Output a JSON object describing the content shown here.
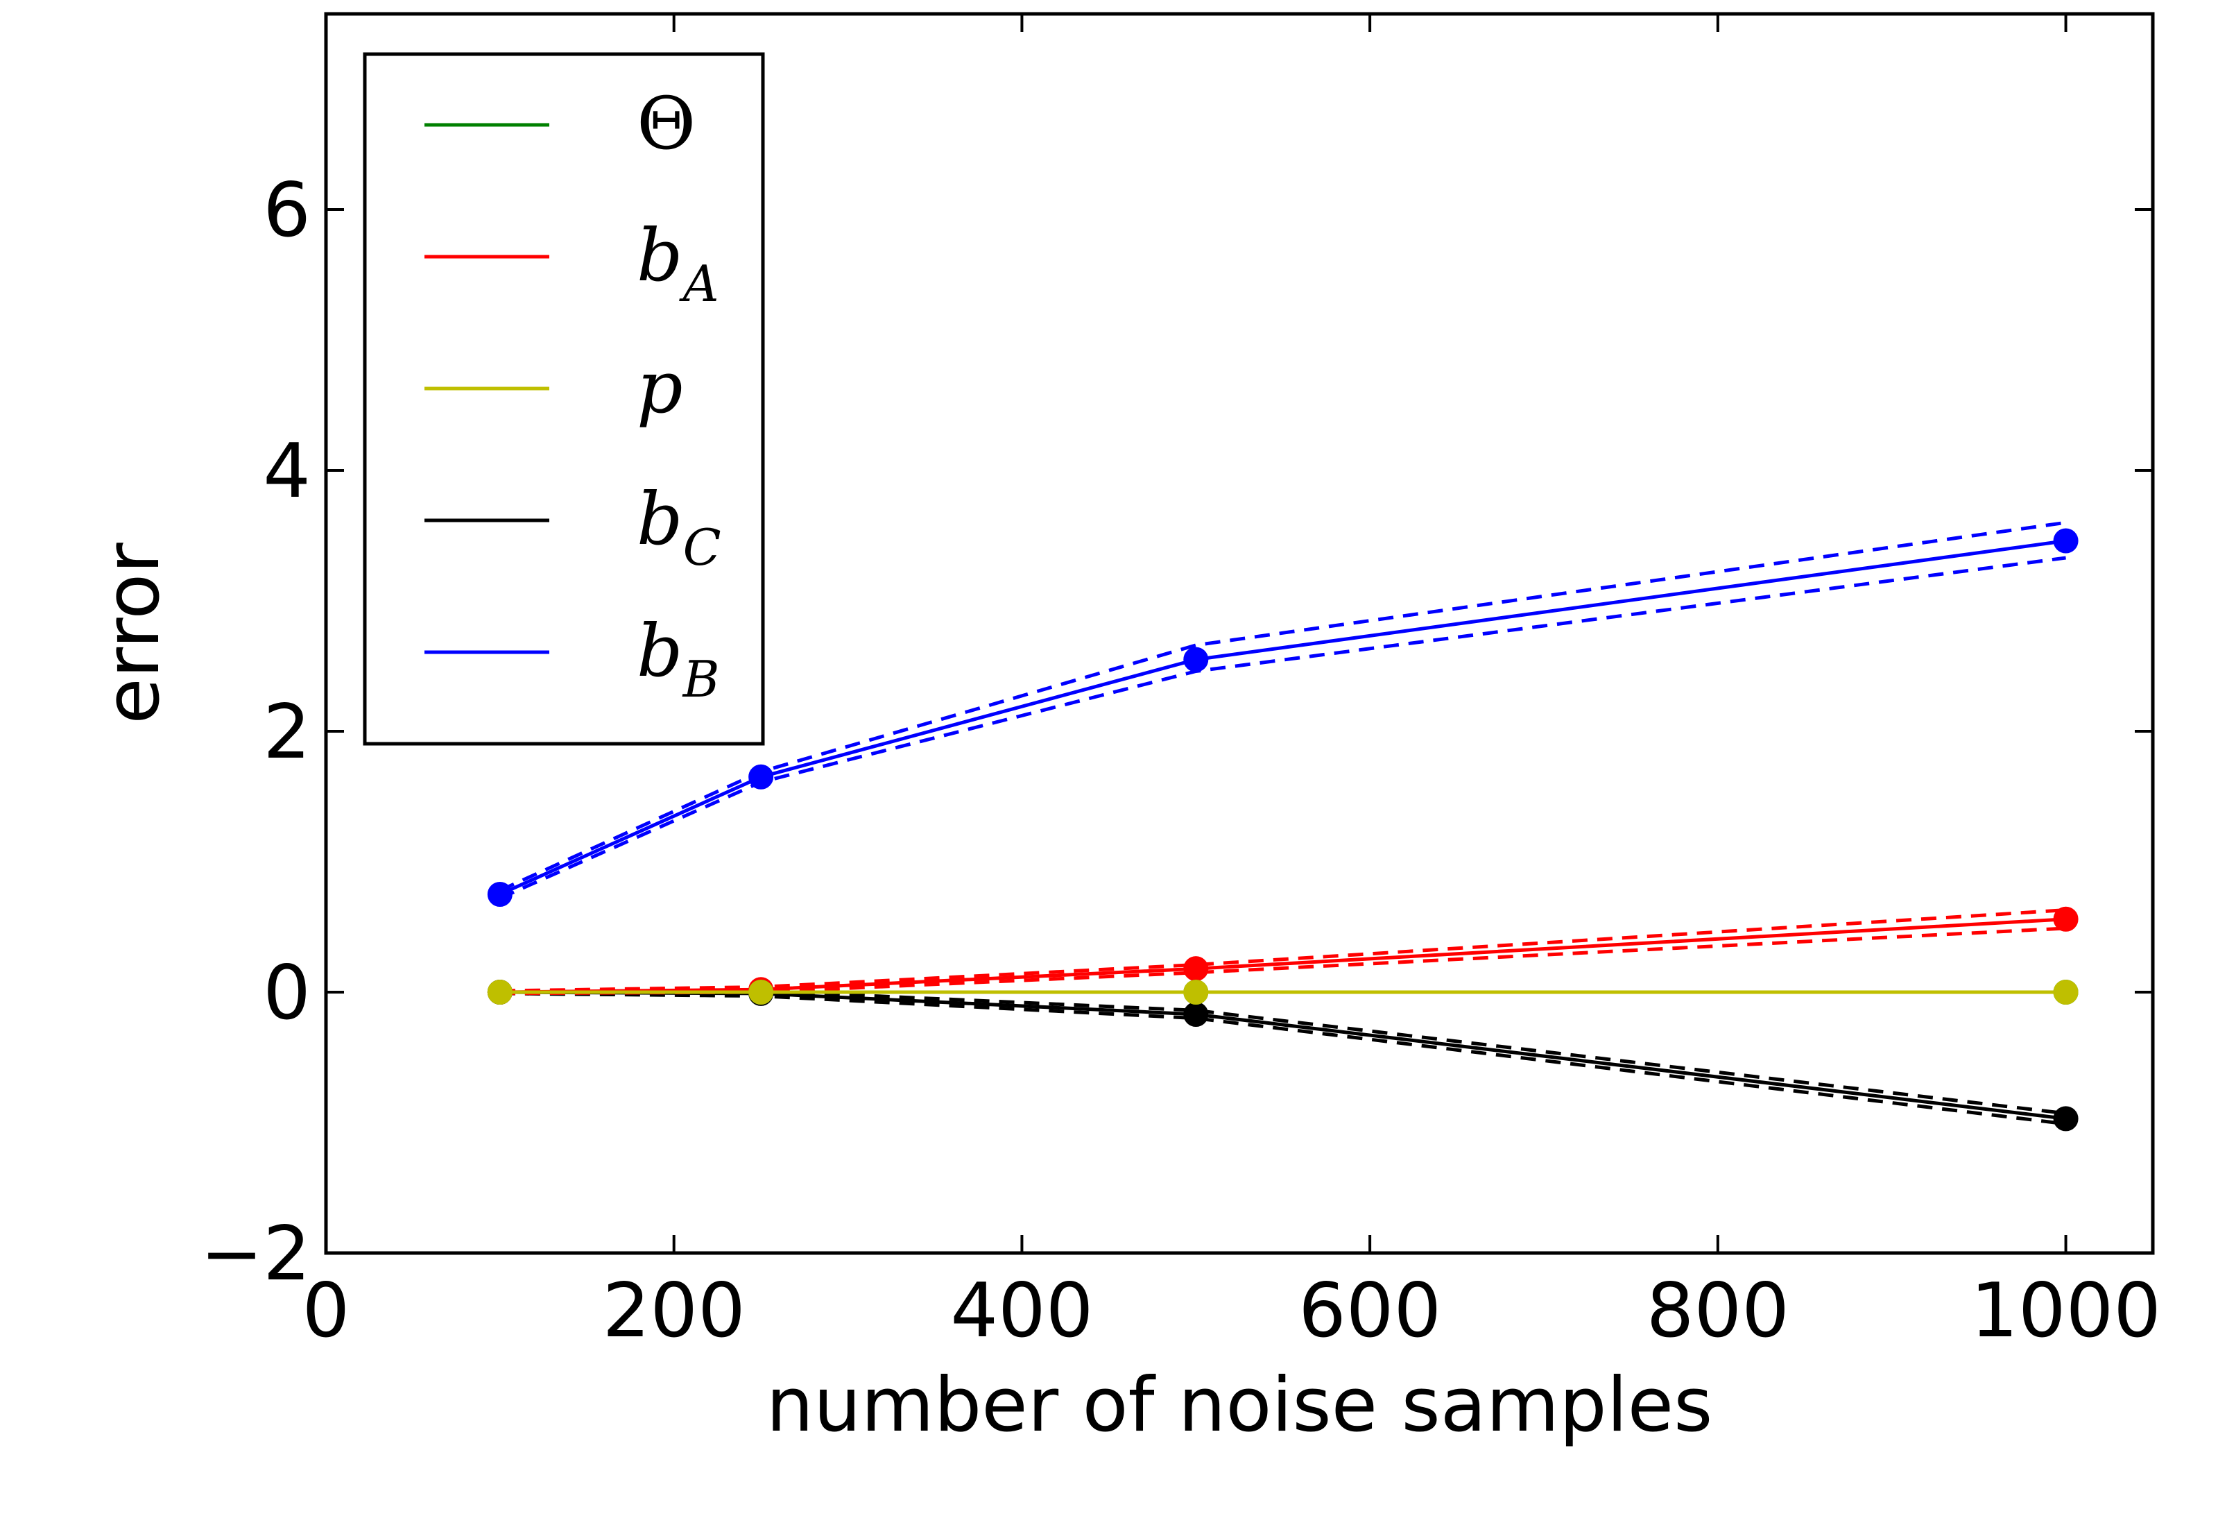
{
  "chart_data": {
    "type": "line",
    "title": "",
    "xlabel": "number of noise samples",
    "ylabel": "error",
    "xlim": [
      0,
      1050
    ],
    "ylim": [
      -2,
      7.5
    ],
    "xticks": [
      0,
      200,
      400,
      600,
      800,
      1000
    ],
    "yticks": [
      -2,
      0,
      2,
      4,
      6
    ],
    "xtick_labels": [
      "0",
      "200",
      "400",
      "600",
      "800",
      "1000"
    ],
    "ytick_labels": [
      "−2",
      "0",
      "2",
      "4",
      "6"
    ],
    "x": [
      100,
      250,
      500,
      1000
    ],
    "legend_position": "upper-left",
    "series": [
      {
        "name": "Θ",
        "legend_main": "Θ",
        "legend_sub": "",
        "color": "#008000",
        "values": [
          0.0,
          0.0,
          0.0,
          0.0
        ],
        "band_upper": [
          0.0,
          0.0,
          0.0,
          0.0
        ],
        "band_lower": [
          0.0,
          0.0,
          0.0,
          0.0
        ]
      },
      {
        "name": "b_A",
        "legend_main": "b",
        "legend_sub": "A",
        "color": "#ff0000",
        "values": [
          0.0,
          0.02,
          0.18,
          0.56
        ],
        "band_upper": [
          0.01,
          0.04,
          0.21,
          0.63
        ],
        "band_lower": [
          -0.01,
          0.0,
          0.15,
          0.49
        ]
      },
      {
        "name": "p",
        "legend_main": "p",
        "legend_sub": "",
        "color": "#bfbf00",
        "values": [
          0.0,
          0.0,
          0.0,
          0.0
        ],
        "band_upper": [
          0.0,
          0.0,
          0.0,
          0.0
        ],
        "band_lower": [
          0.0,
          0.0,
          0.0,
          0.0
        ]
      },
      {
        "name": "b_C",
        "legend_main": "b",
        "legend_sub": "C",
        "color": "#000000",
        "values": [
          0.0,
          -0.01,
          -0.17,
          -0.97
        ],
        "band_upper": [
          0.01,
          0.01,
          -0.14,
          -0.93
        ],
        "band_lower": [
          -0.01,
          -0.03,
          -0.2,
          -1.01
        ]
      },
      {
        "name": "b_B",
        "legend_main": "b",
        "legend_sub": "B",
        "color": "#0000ff",
        "values": [
          0.75,
          1.65,
          2.55,
          3.46
        ],
        "band_upper": [
          0.78,
          1.69,
          2.66,
          3.6
        ],
        "band_lower": [
          0.72,
          1.61,
          2.46,
          3.33
        ]
      }
    ]
  }
}
